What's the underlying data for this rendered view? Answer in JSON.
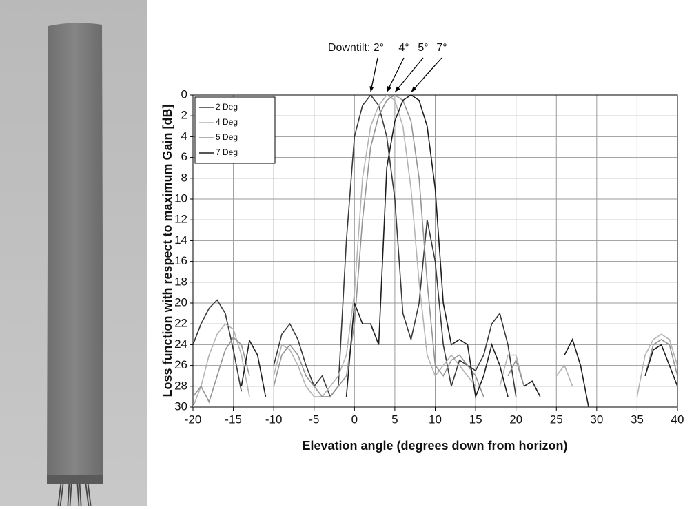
{
  "chart_data": {
    "type": "line",
    "xlabel": "Elevation angle (degrees down from horizon)",
    "ylabel": "Loss function with respect to maximum Gain [dB]",
    "annotations": [
      {
        "text": "Downtilt: 2°",
        "x": 2
      },
      {
        "text": "4°",
        "x": 4
      },
      {
        "text": "5°",
        "x": 5
      },
      {
        "text": "7°",
        "x": 7
      }
    ],
    "x": [
      -20,
      -19,
      -18,
      -17,
      -16,
      -15,
      -14,
      -13,
      -12,
      -11,
      -10,
      -9,
      -8,
      -7,
      -6,
      -5,
      -4,
      -3,
      -2,
      -1,
      0,
      1,
      2,
      3,
      4,
      5,
      6,
      7,
      8,
      9,
      10,
      11,
      12,
      13,
      14,
      15,
      16,
      17,
      18,
      19,
      20,
      21,
      22,
      23,
      24,
      25,
      26,
      27,
      28,
      29,
      30,
      31,
      32,
      33,
      34,
      35,
      36,
      37,
      38,
      39,
      40
    ],
    "series": [
      {
        "name": "2 Deg",
        "color": "#3a3a3a",
        "values": [
          24,
          22,
          20.5,
          19.7,
          21,
          24.5,
          28.5,
          null,
          null,
          null,
          26,
          23,
          22,
          23.5,
          26,
          28,
          27,
          29,
          28,
          14,
          4,
          1,
          0,
          1,
          4,
          10,
          21,
          23.5,
          20,
          12,
          16,
          24,
          28,
          25.5,
          26,
          26.5,
          25,
          22,
          21,
          24,
          29,
          null,
          null,
          null,
          null,
          null,
          null,
          null,
          null,
          null,
          null,
          null,
          null,
          null,
          null,
          null,
          null,
          null,
          null,
          null,
          null
        ]
      },
      {
        "name": "4 Deg",
        "color": "#b4b4b4",
        "values": [
          30,
          28,
          25,
          23,
          22,
          22.5,
          25,
          29,
          null,
          null,
          27,
          24,
          24.5,
          26,
          28,
          29,
          29,
          28,
          27,
          25,
          19,
          8,
          3,
          1,
          0,
          0.5,
          3,
          9,
          18,
          25,
          27,
          26,
          25,
          26,
          27,
          28,
          null,
          null,
          28,
          25,
          25,
          28,
          null,
          null,
          null,
          27,
          26,
          28,
          null,
          null,
          null,
          null,
          null,
          null,
          null,
          29,
          25,
          23.5,
          23,
          23.5,
          26
        ]
      },
      {
        "name": "5 Deg",
        "color": "#949494",
        "values": [
          29,
          28,
          29.5,
          27,
          24.5,
          23.3,
          24,
          27,
          null,
          null,
          28,
          25,
          24,
          25,
          27,
          28,
          29,
          29,
          28,
          27,
          22,
          12,
          5,
          2,
          0.5,
          0,
          0.5,
          2.5,
          8,
          18,
          26,
          27,
          25.5,
          25,
          26,
          27,
          29,
          null,
          null,
          27,
          25.5,
          28,
          null,
          null,
          null,
          null,
          null,
          null,
          null,
          null,
          null,
          null,
          null,
          null,
          null,
          null,
          27,
          24,
          23.5,
          24,
          27
        ]
      },
      {
        "name": "7 Deg",
        "color": "#1e1e1e",
        "values": [
          null,
          null,
          null,
          null,
          null,
          null,
          28,
          23.6,
          25,
          29,
          null,
          null,
          null,
          null,
          null,
          null,
          null,
          null,
          null,
          29,
          20,
          22,
          22,
          24,
          7,
          2.5,
          0.5,
          0,
          0.5,
          3,
          9,
          20,
          24,
          23.5,
          24,
          29,
          27,
          24,
          26,
          29,
          null,
          28,
          27.5,
          29,
          null,
          null,
          25,
          23.5,
          26,
          30,
          null,
          null,
          null,
          null,
          null,
          null,
          27,
          24.5,
          24,
          26,
          28
        ]
      }
    ],
    "xlim": [
      -20,
      40
    ],
    "xticks": [
      -20,
      -15,
      -10,
      -5,
      0,
      5,
      10,
      15,
      20,
      25,
      30,
      35,
      40
    ],
    "ylim": [
      0,
      30
    ],
    "yticks": [
      0,
      2,
      4,
      6,
      8,
      10,
      12,
      14,
      16,
      18,
      20,
      22,
      24,
      26,
      28,
      30
    ],
    "y_inverted": true,
    "grid": true,
    "legend": "upper left"
  }
}
